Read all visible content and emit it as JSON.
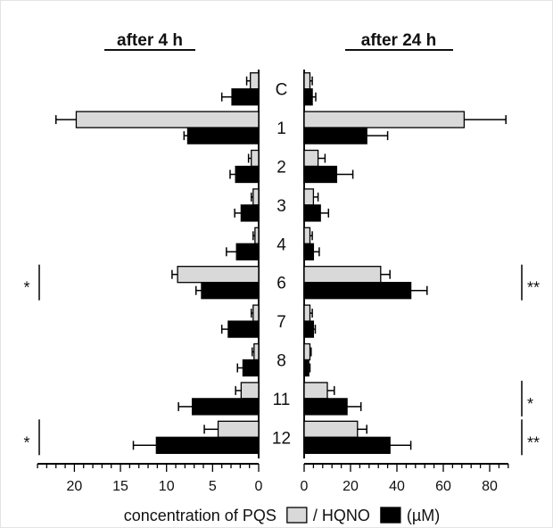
{
  "chart_data": {
    "type": "bar",
    "orientation": "horizontal, mirrored panels",
    "categories": [
      "C",
      "1",
      "2",
      "3",
      "4",
      "6",
      "7",
      "8",
      "11",
      "12"
    ],
    "xlabel": {
      "prefix": "concentration of PQS",
      "middle": "/ HQNO",
      "suffix": "(µM)"
    },
    "grid": false,
    "legend": "inline in x-axis label",
    "panels": [
      {
        "title": "after 4 h",
        "direction": "leftward",
        "xlim": [
          0,
          24
        ],
        "xticks": [
          0,
          5,
          10,
          15,
          20
        ],
        "series": [
          {
            "name": "PQS",
            "color": "#d9d9d9",
            "values": [
              0.9,
              19.8,
              0.8,
              0.6,
              0.4,
              8.8,
              0.6,
              0.5,
              1.9,
              4.4
            ],
            "errors": [
              0.4,
              2.2,
              0.3,
              0.2,
              0.2,
              0.6,
              0.2,
              0.2,
              0.6,
              1.5
            ]
          },
          {
            "name": "HQNO",
            "color": "#000000",
            "values": [
              2.9,
              7.7,
              2.5,
              1.9,
              2.4,
              6.2,
              3.3,
              1.7,
              7.2,
              11.1
            ],
            "errors": [
              1.1,
              0.4,
              0.6,
              0.7,
              1.1,
              0.6,
              0.7,
              0.6,
              1.5,
              2.5
            ]
          }
        ],
        "significance": [
          {
            "category": "6",
            "label": "*"
          },
          {
            "category": "12",
            "label": "*"
          }
        ]
      },
      {
        "title": "after 24 h",
        "direction": "rightward",
        "xlim": [
          0,
          88
        ],
        "xticks": [
          0,
          20,
          40,
          60,
          80
        ],
        "series": [
          {
            "name": "PQS",
            "color": "#d9d9d9",
            "values": [
              2.5,
              69,
              6,
              4,
              2.5,
              33,
              2.5,
              2.5,
              10,
              23
            ],
            "errors": [
              1,
              18,
              3,
              2,
              1,
              4,
              1,
              0.5,
              3,
              4
            ]
          },
          {
            "name": "HQNO",
            "color": "#000000",
            "values": [
              3.5,
              27,
              14,
              7,
              4,
              46,
              4,
              2,
              18.5,
              37
            ],
            "errors": [
              1.5,
              9,
              7,
              3.5,
              2.5,
              7,
              0.8,
              0.5,
              6,
              9
            ]
          }
        ],
        "significance": [
          {
            "category": "6",
            "label": "**"
          },
          {
            "category": "11",
            "label": "*"
          },
          {
            "category": "12",
            "label": "**"
          }
        ]
      }
    ]
  }
}
